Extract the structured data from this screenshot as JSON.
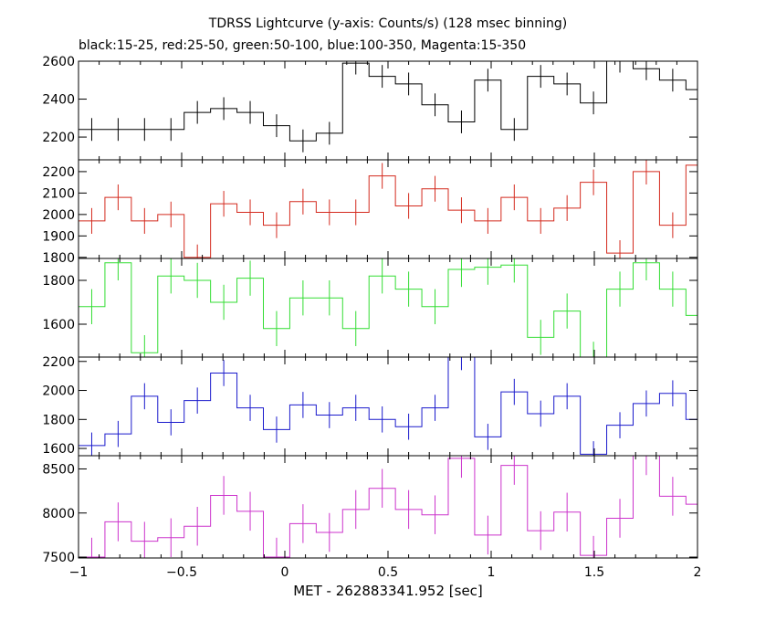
{
  "title_line1": "TDRSS Lightcurve (y-axis: Counts/s) (128 msec binning)",
  "title_line2": "black:15-25, red:25-50, green:50-100, blue:100-350, Magenta:15-350",
  "xlabel": "MET - 262883341.952 [sec]",
  "chart_data": {
    "type": "line",
    "style": "step-histogram-with-error-bars",
    "binning_sec": 0.128,
    "xlim": [
      -1,
      2
    ],
    "x_ticks": [
      -1,
      -0.5,
      0,
      0.5,
      1,
      1.5,
      2
    ],
    "x_tick_labels": [
      "−1",
      "−0.5",
      "0",
      "0.5",
      "1",
      "1.5",
      "2"
    ],
    "x_bin_starts": [
      -1.0,
      -0.872,
      -0.744,
      -0.616,
      -0.488,
      -0.36,
      -0.232,
      -0.104,
      0.024,
      0.152,
      0.28,
      0.408,
      0.536,
      0.664,
      0.792,
      0.92,
      1.048,
      1.176,
      1.304,
      1.432,
      1.56,
      1.688,
      1.816,
      1.944
    ],
    "panels": [
      {
        "band": "15-25",
        "color": "#000000",
        "ylim": [
          2080,
          2600
        ],
        "y_ticks": [
          2200,
          2400,
          2600
        ],
        "values": [
          2240,
          2240,
          2240,
          2240,
          2330,
          2350,
          2330,
          2260,
          2180,
          2220,
          2590,
          2520,
          2480,
          2370,
          2280,
          2500,
          2240,
          2520,
          2480,
          2380,
          2600,
          2560,
          2500,
          2450
        ],
        "errors": [
          60,
          60,
          60,
          60,
          60,
          60,
          60,
          60,
          60,
          60,
          60,
          60,
          60,
          60,
          60,
          60,
          60,
          60,
          60,
          60,
          60,
          60,
          60,
          60
        ]
      },
      {
        "band": "25-50",
        "color": "#d42a1e",
        "ylim": [
          1795,
          2255
        ],
        "y_ticks": [
          1800,
          1900,
          2000,
          2100,
          2200
        ],
        "values": [
          1970,
          2080,
          1970,
          2000,
          1800,
          2050,
          2010,
          1950,
          2060,
          2010,
          2010,
          2180,
          2040,
          2120,
          2020,
          1970,
          2080,
          1970,
          2030,
          2150,
          1820,
          2200,
          1950,
          2230
        ],
        "errors": [
          60,
          60,
          60,
          60,
          60,
          60,
          60,
          60,
          60,
          60,
          60,
          60,
          60,
          60,
          60,
          60,
          60,
          60,
          60,
          60,
          60,
          60,
          60,
          60
        ]
      },
      {
        "band": "50-100",
        "color": "#33dd33",
        "ylim": [
          1450,
          1900
        ],
        "y_ticks": [
          1600,
          1800
        ],
        "values": [
          1680,
          1880,
          1470,
          1820,
          1800,
          1700,
          1810,
          1580,
          1720,
          1720,
          1580,
          1820,
          1760,
          1680,
          1850,
          1860,
          1870,
          1540,
          1660,
          1440,
          1760,
          1880,
          1760,
          1640
        ],
        "errors": [
          80,
          80,
          80,
          80,
          80,
          80,
          80,
          80,
          80,
          80,
          80,
          80,
          80,
          80,
          80,
          80,
          80,
          80,
          80,
          80,
          80,
          80,
          80,
          80
        ]
      },
      {
        "band": "100-350",
        "color": "#1a1acc",
        "ylim": [
          1550,
          2230
        ],
        "y_ticks": [
          1600,
          1800,
          2000,
          2200
        ],
        "values": [
          1620,
          1700,
          1960,
          1780,
          1930,
          2120,
          1880,
          1730,
          1900,
          1830,
          1880,
          1800,
          1750,
          1880,
          2230,
          1680,
          1990,
          1840,
          1960,
          1560,
          1760,
          1910,
          1980,
          1800
        ],
        "errors": [
          90,
          90,
          90,
          90,
          90,
          90,
          90,
          90,
          90,
          90,
          90,
          90,
          90,
          90,
          90,
          90,
          90,
          90,
          90,
          90,
          90,
          90,
          90,
          90
        ]
      },
      {
        "band": "15-350",
        "color": "#cc33cc",
        "ylim": [
          7490,
          8650
        ],
        "y_ticks": [
          7500,
          8000,
          8500
        ],
        "values": [
          7500,
          7900,
          7680,
          7720,
          7850,
          8200,
          8020,
          7500,
          7880,
          7780,
          8040,
          8280,
          8040,
          7980,
          8620,
          7750,
          8540,
          7800,
          8010,
          7520,
          7940,
          8650,
          8190,
          8100
        ],
        "errors": [
          220,
          220,
          220,
          220,
          220,
          220,
          220,
          220,
          220,
          220,
          220,
          220,
          220,
          220,
          220,
          220,
          220,
          220,
          220,
          220,
          220,
          220,
          220,
          220
        ]
      }
    ]
  }
}
